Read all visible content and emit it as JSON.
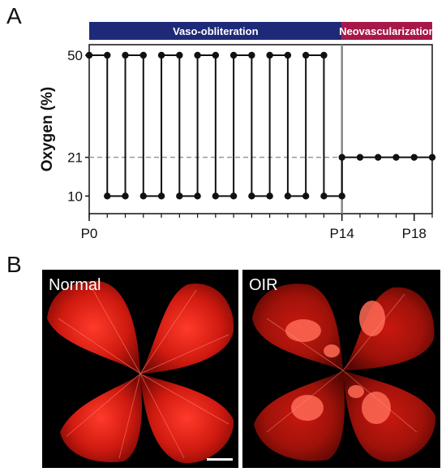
{
  "panel_a": {
    "letter": "A"
  },
  "panel_b": {
    "letter": "B",
    "images": [
      {
        "label": "Normal"
      },
      {
        "label": "OIR"
      }
    ]
  },
  "chart_data": {
    "type": "line",
    "ylabel": "Oxygen (%)",
    "y_ticks": [
      10,
      21,
      50
    ],
    "ylim": [
      5,
      53
    ],
    "x_ticks": [
      {
        "day": 0,
        "label": "P0"
      },
      {
        "day": 14,
        "label": "P14"
      },
      {
        "day": 18,
        "label": "P18"
      }
    ],
    "xlim": [
      0,
      19
    ],
    "phases": [
      {
        "label": "Vaso-obliteration",
        "start": 0,
        "end": 14,
        "color": "#1e2a78"
      },
      {
        "label": "Neovascularization",
        "start": 14,
        "end": 19,
        "color": "#a8174a"
      }
    ],
    "reference_line": {
      "y": 21,
      "style": "dashed"
    },
    "phase_divider_day": 14,
    "series": [
      {
        "points": [
          [
            0,
            50
          ],
          [
            1,
            50
          ],
          [
            1,
            10
          ],
          [
            2,
            10
          ],
          [
            2,
            50
          ],
          [
            3,
            50
          ],
          [
            3,
            10
          ],
          [
            4,
            10
          ],
          [
            4,
            50
          ],
          [
            5,
            50
          ],
          [
            5,
            10
          ],
          [
            6,
            10
          ],
          [
            6,
            50
          ],
          [
            7,
            50
          ],
          [
            7,
            10
          ],
          [
            8,
            10
          ],
          [
            8,
            50
          ],
          [
            9,
            50
          ],
          [
            9,
            10
          ],
          [
            10,
            10
          ],
          [
            10,
            50
          ],
          [
            11,
            50
          ],
          [
            11,
            10
          ],
          [
            12,
            10
          ],
          [
            12,
            50
          ],
          [
            13,
            50
          ],
          [
            13,
            10
          ],
          [
            14,
            10
          ],
          [
            14,
            21
          ],
          [
            15,
            21
          ],
          [
            16,
            21
          ],
          [
            17,
            21
          ],
          [
            18,
            21
          ],
          [
            19,
            21
          ]
        ]
      }
    ]
  }
}
